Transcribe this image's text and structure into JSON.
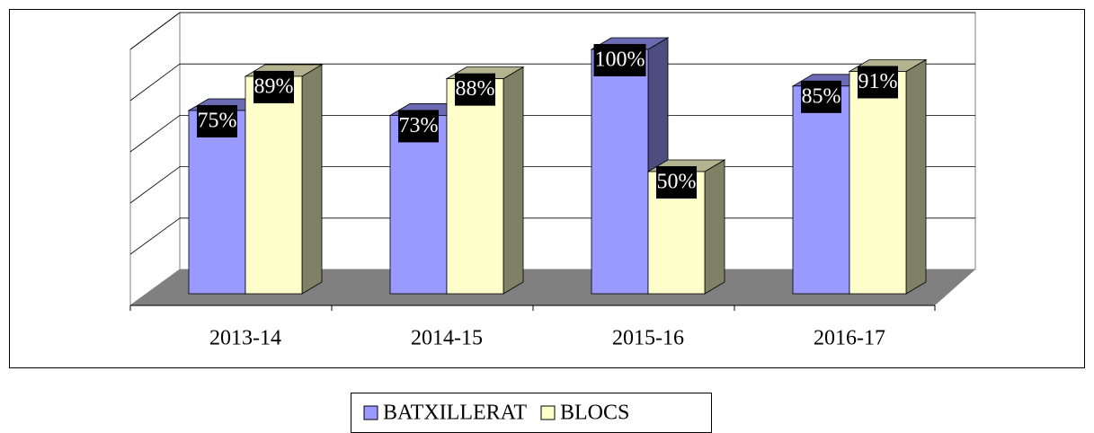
{
  "chart_data": {
    "type": "bar",
    "categories": [
      "2013-14",
      "2014-15",
      "2015-16",
      "2016-17"
    ],
    "series": [
      {
        "name": "BATXILLERAT",
        "color": "#9999ff",
        "values": [
          75,
          73,
          100,
          85
        ],
        "value_labels": [
          "75%",
          "73%",
          "100%",
          "85%"
        ]
      },
      {
        "name": "BLOCS",
        "color": "#ffffcc",
        "values": [
          89,
          88,
          50,
          91
        ],
        "value_labels": [
          "89%",
          "88%",
          "50%",
          "91%"
        ]
      }
    ],
    "ylim": [
      0,
      100
    ],
    "yticks": [
      0,
      20,
      40,
      60,
      80,
      100
    ],
    "grid": true
  }
}
